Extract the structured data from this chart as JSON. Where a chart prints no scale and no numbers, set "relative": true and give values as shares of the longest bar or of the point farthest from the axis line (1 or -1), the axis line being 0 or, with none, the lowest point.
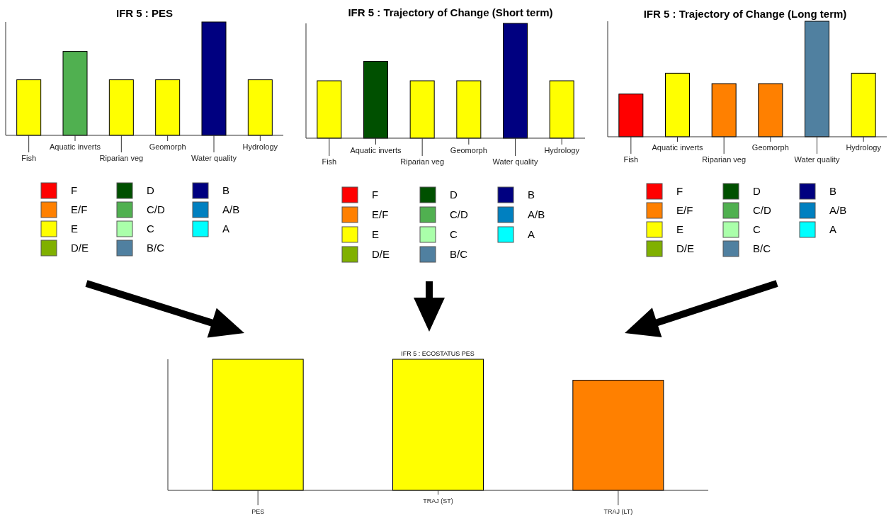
{
  "chart_data": [
    {
      "type": "bar",
      "title": "IFR 5 : PES",
      "relative": true,
      "legend": "bottom",
      "categories": [
        "Fish",
        "Aquatic inverts",
        "Riparian veg",
        "Geomorph",
        "Water quality",
        "Hydrology"
      ],
      "series": [
        {
          "name": "F",
          "color": "#ff0000",
          "values": [
            null,
            null,
            null,
            null,
            null,
            null
          ]
        },
        {
          "name": "E/F",
          "color": "#ff8000",
          "values": [
            null,
            null,
            null,
            null,
            null,
            null
          ]
        },
        {
          "name": "E",
          "color": "#ffff00",
          "values": [
            0.49,
            null,
            0.49,
            0.49,
            null,
            0.49
          ]
        },
        {
          "name": "D/E",
          "color": "#80b000",
          "values": [
            null,
            null,
            null,
            null,
            null,
            null
          ]
        },
        {
          "name": "D",
          "color": "#005000",
          "values": [
            null,
            null,
            null,
            null,
            null,
            null
          ]
        },
        {
          "name": "C/D",
          "color": "#50b050",
          "values": [
            null,
            0.74,
            null,
            null,
            null,
            null
          ]
        },
        {
          "name": "C",
          "color": "#aaffaa",
          "values": [
            null,
            null,
            null,
            null,
            null,
            null
          ]
        },
        {
          "name": "B/C",
          "color": "#5080a0",
          "values": [
            null,
            null,
            null,
            null,
            null,
            null
          ]
        },
        {
          "name": "B",
          "color": "#000080",
          "values": [
            null,
            null,
            null,
            null,
            1,
            null
          ]
        },
        {
          "name": "A/B",
          "color": "#0080c0",
          "values": [
            null,
            null,
            null,
            null,
            null,
            null
          ]
        },
        {
          "name": "A",
          "color": "#00ffff",
          "values": [
            null,
            null,
            null,
            null,
            null,
            null
          ]
        }
      ]
    },
    {
      "type": "bar",
      "title": "IFR 5 : Trajectory of Change (Short term)",
      "relative": true,
      "legend": "bottom",
      "categories": [
        "Fish",
        "Aquatic inverts",
        "Riparian veg",
        "Geomorph",
        "Water quality",
        "Hydrology"
      ],
      "series": [
        {
          "name": "F",
          "color": "#ff0000",
          "values": [
            null,
            null,
            null,
            null,
            null,
            null
          ]
        },
        {
          "name": "E/F",
          "color": "#ff8000",
          "values": [
            null,
            null,
            null,
            null,
            null,
            null
          ]
        },
        {
          "name": "E",
          "color": "#ffff00",
          "values": [
            0.5,
            null,
            0.5,
            0.5,
            null,
            0.5
          ]
        },
        {
          "name": "D/E",
          "color": "#80b000",
          "values": [
            null,
            null,
            null,
            null,
            null,
            null
          ]
        },
        {
          "name": "D",
          "color": "#005000",
          "values": [
            null,
            0.67,
            null,
            null,
            null,
            null
          ]
        },
        {
          "name": "C/D",
          "color": "#50b050",
          "values": [
            null,
            null,
            null,
            null,
            null,
            null
          ]
        },
        {
          "name": "C",
          "color": "#aaffaa",
          "values": [
            null,
            null,
            null,
            null,
            null,
            null
          ]
        },
        {
          "name": "B/C",
          "color": "#5080a0",
          "values": [
            null,
            null,
            null,
            null,
            null,
            null
          ]
        },
        {
          "name": "B",
          "color": "#000080",
          "values": [
            null,
            null,
            null,
            null,
            1,
            null
          ]
        },
        {
          "name": "A/B",
          "color": "#0080c0",
          "values": [
            null,
            null,
            null,
            null,
            null,
            null
          ]
        },
        {
          "name": "A",
          "color": "#00ffff",
          "values": [
            null,
            null,
            null,
            null,
            null,
            null
          ]
        }
      ]
    },
    {
      "type": "bar",
      "title": "IFR 5 : Trajectory of Change (Long term)",
      "relative": true,
      "legend": "bottom",
      "categories": [
        "Fish",
        "Aquatic inverts",
        "Riparian veg",
        "Geomorph",
        "Water quality",
        "Hydrology"
      ],
      "series": [
        {
          "name": "F",
          "color": "#ff0000",
          "values": [
            0.37,
            null,
            null,
            null,
            null,
            null
          ]
        },
        {
          "name": "E/F",
          "color": "#ff8000",
          "values": [
            null,
            null,
            0.46,
            0.46,
            null,
            null
          ]
        },
        {
          "name": "E",
          "color": "#ffff00",
          "values": [
            null,
            0.55,
            null,
            null,
            null,
            0.55
          ]
        },
        {
          "name": "D/E",
          "color": "#80b000",
          "values": [
            null,
            null,
            null,
            null,
            null,
            null
          ]
        },
        {
          "name": "D",
          "color": "#005000",
          "values": [
            null,
            null,
            null,
            null,
            null,
            null
          ]
        },
        {
          "name": "C/D",
          "color": "#50b050",
          "values": [
            null,
            null,
            null,
            null,
            null,
            null
          ]
        },
        {
          "name": "C",
          "color": "#aaffaa",
          "values": [
            null,
            null,
            null,
            null,
            null,
            null
          ]
        },
        {
          "name": "B/C",
          "color": "#5080a0",
          "values": [
            null,
            null,
            null,
            null,
            1,
            null
          ]
        },
        {
          "name": "B",
          "color": "#000080",
          "values": [
            null,
            null,
            null,
            null,
            null,
            null
          ]
        },
        {
          "name": "A/B",
          "color": "#0080c0",
          "values": [
            null,
            null,
            null,
            null,
            null,
            null
          ]
        },
        {
          "name": "A",
          "color": "#00ffff",
          "values": [
            null,
            null,
            null,
            null,
            null,
            null
          ]
        }
      ]
    },
    {
      "type": "bar",
      "title": "IFR 5 : ECOSTATUS PES",
      "relative": true,
      "categories": [
        "PES",
        "TRAJ (ST)",
        "TRAJ (LT)"
      ],
      "values": [
        1,
        1,
        0.84
      ],
      "colors": [
        "#ffff00",
        "#ffff00",
        "#ff8000"
      ]
    }
  ]
}
